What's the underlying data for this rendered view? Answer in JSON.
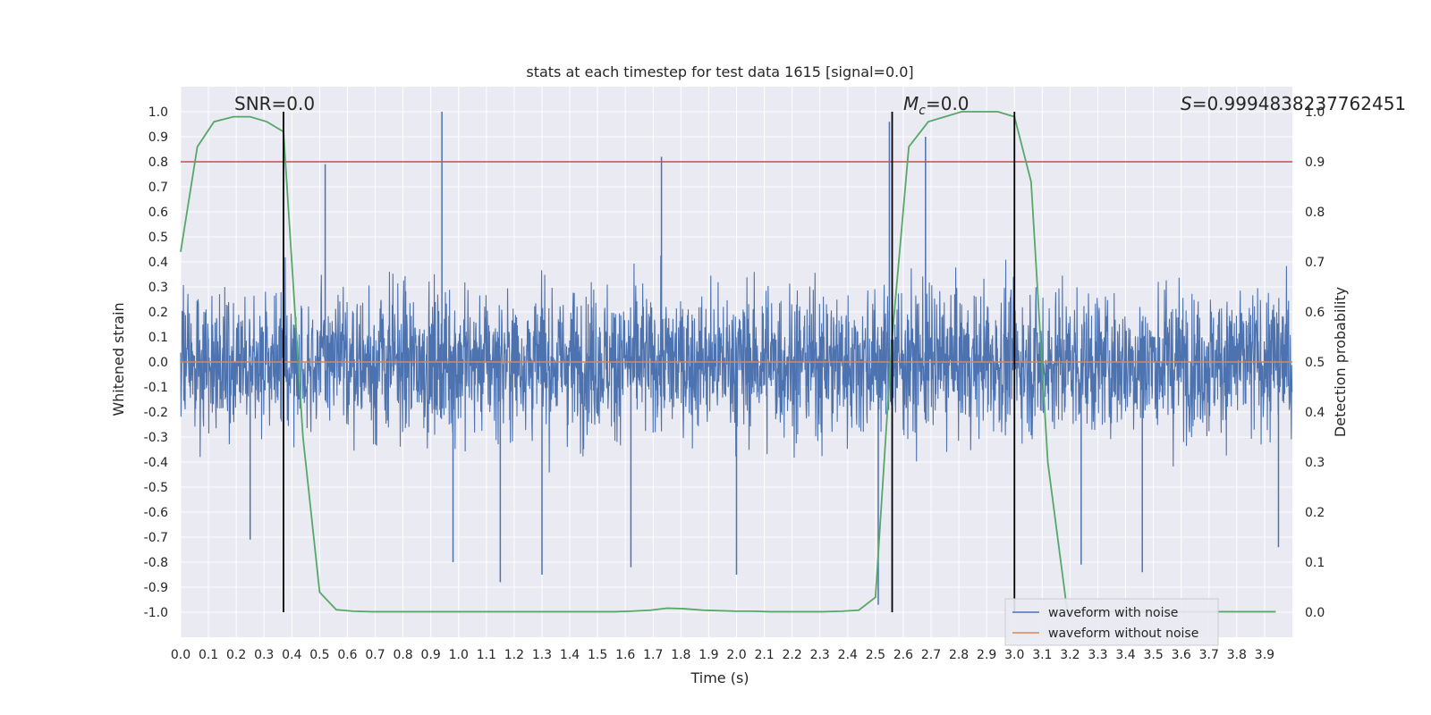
{
  "chart_data": {
    "type": "line",
    "title": "stats at each timestep for test data 1615 [signal=0.0]",
    "xlabel": "Time (s)",
    "ylabel": "Whitened strain",
    "y2label": "Detection probability",
    "xlim": [
      0.0,
      4.0
    ],
    "ylim": [
      -1.1,
      1.1
    ],
    "y2lim": [
      -0.05,
      1.05
    ],
    "x_ticks": [
      "0.0",
      "0.1",
      "0.2",
      "0.3",
      "0.4",
      "0.5",
      "0.6",
      "0.7",
      "0.8",
      "0.9",
      "1.0",
      "1.1",
      "1.2",
      "1.3",
      "1.4",
      "1.5",
      "1.6",
      "1.7",
      "1.8",
      "1.9",
      "2.0",
      "2.1",
      "2.2",
      "2.3",
      "2.4",
      "2.5",
      "2.6",
      "2.7",
      "2.8",
      "2.9",
      "3.0",
      "3.1",
      "3.2",
      "3.3",
      "3.4",
      "3.5",
      "3.6",
      "3.7",
      "3.8",
      "3.9"
    ],
    "y_ticks": [
      "1.0",
      "0.9",
      "0.8",
      "0.7",
      "0.6",
      "0.5",
      "0.4",
      "0.3",
      "0.2",
      "0.1",
      "0.0",
      "-0.1",
      "-0.2",
      "-0.3",
      "-0.4",
      "-0.5",
      "-0.6",
      "-0.7",
      "-0.8",
      "-0.9",
      "-1.0"
    ],
    "y2_ticks": [
      "1.0",
      "0.9",
      "0.8",
      "0.7",
      "0.6",
      "0.5",
      "0.4",
      "0.3",
      "0.2",
      "0.1",
      "0.0"
    ],
    "grid": true,
    "legend_position": "bottom-right",
    "annotations": {
      "snr": "SNR=0.0",
      "mc_symbol": "M",
      "mc_sub": "c",
      "mc_value": "=0.0",
      "s_symbol": "S",
      "s_value": "=0.9994838237762451"
    },
    "vertical_lines": [
      0.37,
      2.56,
      3.0
    ],
    "threshold_line": {
      "y2": 0.9,
      "color": "#c44e52"
    },
    "series": [
      {
        "name": "waveform with noise",
        "color": "#4c72b0",
        "axis": "left",
        "description_values": {
          "sampling": "dense noise 0–4 s",
          "peaks": [
            [
              0.94,
              1.0
            ],
            [
              0.52,
              0.79
            ],
            [
              1.73,
              0.82
            ],
            [
              2.55,
              0.96
            ],
            [
              2.68,
              0.9
            ],
            [
              2.51,
              -0.97
            ],
            [
              1.15,
              -0.88
            ],
            [
              1.3,
              -0.85
            ],
            [
              2.0,
              -0.85
            ],
            [
              3.24,
              -0.81
            ],
            [
              1.62,
              -0.82
            ],
            [
              3.46,
              -0.84
            ],
            [
              3.95,
              -0.74
            ],
            [
              0.25,
              -0.71
            ],
            [
              0.98,
              -0.8
            ]
          ]
        }
      },
      {
        "name": "waveform without noise",
        "color": "#dd8452",
        "axis": "left",
        "x": [
          0.0,
          4.0
        ],
        "y": [
          0.0,
          0.0
        ]
      },
      {
        "name": "",
        "color": "#55a868",
        "axis": "right",
        "x": [
          0.0,
          0.06,
          0.12,
          0.19,
          0.25,
          0.31,
          0.37,
          0.44,
          0.5,
          0.56,
          0.62,
          0.69,
          0.75,
          0.81,
          0.88,
          0.94,
          1.0,
          1.06,
          1.12,
          1.19,
          1.25,
          1.31,
          1.38,
          1.44,
          1.5,
          1.56,
          1.62,
          1.69,
          1.75,
          1.81,
          1.88,
          1.94,
          2.0,
          2.06,
          2.12,
          2.19,
          2.25,
          2.31,
          2.38,
          2.44,
          2.5,
          2.56,
          2.62,
          2.69,
          2.75,
          2.81,
          2.88,
          2.94,
          3.0,
          3.06,
          3.12,
          3.19,
          3.25,
          3.31,
          3.38,
          3.44,
          3.5,
          3.56,
          3.62,
          3.69,
          3.75,
          3.81,
          3.88,
          3.94
        ],
        "y": [
          0.72,
          0.93,
          0.98,
          0.99,
          0.99,
          0.98,
          0.96,
          0.35,
          0.04,
          0.005,
          0.002,
          0.001,
          0.001,
          0.001,
          0.001,
          0.001,
          0.001,
          0.001,
          0.001,
          0.001,
          0.001,
          0.001,
          0.001,
          0.001,
          0.001,
          0.001,
          0.002,
          0.004,
          0.008,
          0.007,
          0.004,
          0.003,
          0.002,
          0.002,
          0.001,
          0.001,
          0.001,
          0.001,
          0.002,
          0.004,
          0.03,
          0.55,
          0.93,
          0.98,
          0.99,
          1.0,
          1.0,
          1.0,
          0.99,
          0.86,
          0.3,
          0.002,
          0.001,
          0.001,
          0.001,
          0.001,
          0.001,
          0.001,
          0.001,
          0.001,
          0.001,
          0.001,
          0.001,
          0.001
        ]
      }
    ]
  }
}
